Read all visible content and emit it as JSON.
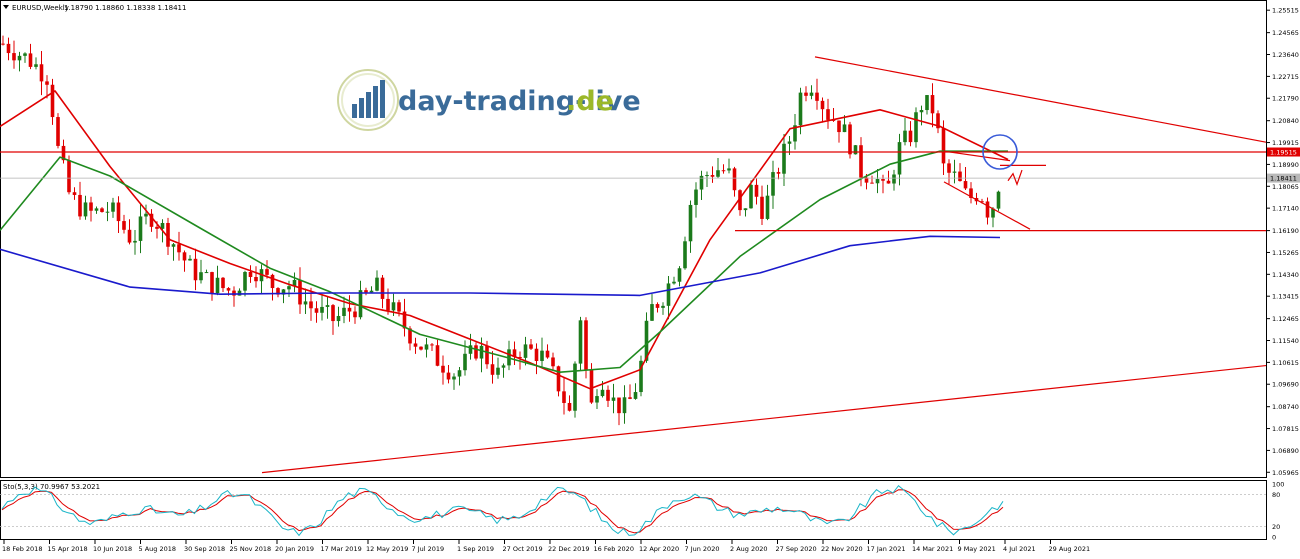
{
  "header": {
    "symbol": "EURUSD,Weekly",
    "ohlc": "1.18790 1.18860 1.18338 1.18411"
  },
  "logo": {
    "text_main": "day-trading-live",
    "text_tld": ".de"
  },
  "price_axis": {
    "ticks": [
      "1.25515",
      "1.24565",
      "1.23640",
      "1.22715",
      "1.21790",
      "1.20840",
      "1.19915",
      "1.18990",
      "1.18065",
      "1.17140",
      "1.16190",
      "1.15265",
      "1.14340",
      "1.13415",
      "1.12465",
      "1.11540",
      "1.10615",
      "1.09690",
      "1.08740",
      "1.07815",
      "1.06890",
      "1.05965"
    ],
    "highlight_red": "1.19515",
    "highlight_gray": "1.18411"
  },
  "time_axis": {
    "labels": [
      "18 Feb 2018",
      "15 Apr 2018",
      "10 Jun 2018",
      "5 Aug 2018",
      "30 Sep 2018",
      "25 Nov 2018",
      "20 Jan 2019",
      "17 Mar 2019",
      "12 May 2019",
      "7 Jul 2019",
      "1 Sep 2019",
      "27 Oct 2019",
      "22 Dec 2019",
      "16 Feb 2020",
      "12 Apr 2020",
      "7 Jun 2020",
      "2 Aug 2020",
      "27 Sep 2020",
      "22 Nov 2020",
      "17 Jan 2021",
      "14 Mar 2021",
      "9 May 2021",
      "4 Jul 2021",
      "29 Aug 2021"
    ]
  },
  "oscillator": {
    "label": "Sto(5,3,3) 70.9967 53.2021",
    "ticks": [
      "100",
      "80",
      "20",
      "0"
    ]
  },
  "colors": {
    "bull": "#1b7a1b",
    "bear": "#e00000",
    "ma_fast": "#e00000",
    "ma_mid": "#1f8a1f",
    "ma_slow": "#1a1acc",
    "trendline": "#e00000",
    "circle": "#3a5bd8",
    "stoch_main": "#19b5c8",
    "stoch_signal": "#e00000"
  },
  "chart_data": {
    "type": "candlestick",
    "title": "EURUSD,Weekly",
    "xlabel": "",
    "ylabel": "",
    "ylim": [
      1.0585,
      1.2565
    ],
    "x_start": "18 Feb 2018",
    "x_end": "29 Aug 2021",
    "period": "weekly",
    "last_close": 1.18411,
    "horizontal_levels": [
      1.19515,
      1.1619
    ],
    "trendlines": [
      {
        "from": [
          "2020-11-29",
          1.2354
        ],
        "to": [
          "2021-09-26",
          1.1993
        ],
        "color": "red"
      },
      {
        "from": [
          "2019-04-28",
          1.0595
        ],
        "to": [
          "2021-09-26",
          1.1048
        ],
        "color": "red"
      }
    ],
    "series": [
      {
        "name": "MA fast",
        "anchor_values": [
          1.206,
          1.221,
          1.189,
          1.158,
          1.148,
          1.139,
          1.131,
          1.126,
          1.116,
          1.106,
          1.095,
          1.103,
          1.158,
          1.205,
          1.213,
          1.206,
          1.192
        ]
      },
      {
        "name": "MA mid",
        "anchor_values": [
          1.162,
          1.193,
          1.185,
          1.163,
          1.146,
          1.136,
          1.118,
          1.109,
          1.102,
          1.104,
          1.119,
          1.151,
          1.175,
          1.19,
          1.1955,
          1.1955
        ]
      },
      {
        "name": "MA slow",
        "anchor_values": [
          1.154,
          1.138,
          1.135,
          1.1355,
          1.1355,
          1.1345,
          1.144,
          1.1555,
          1.1595,
          1.159
        ]
      },
      {
        "name": "Sto main",
        "range": [
          0,
          100
        ]
      },
      {
        "name": "Sto signal",
        "range": [
          0,
          100
        ]
      }
    ]
  }
}
